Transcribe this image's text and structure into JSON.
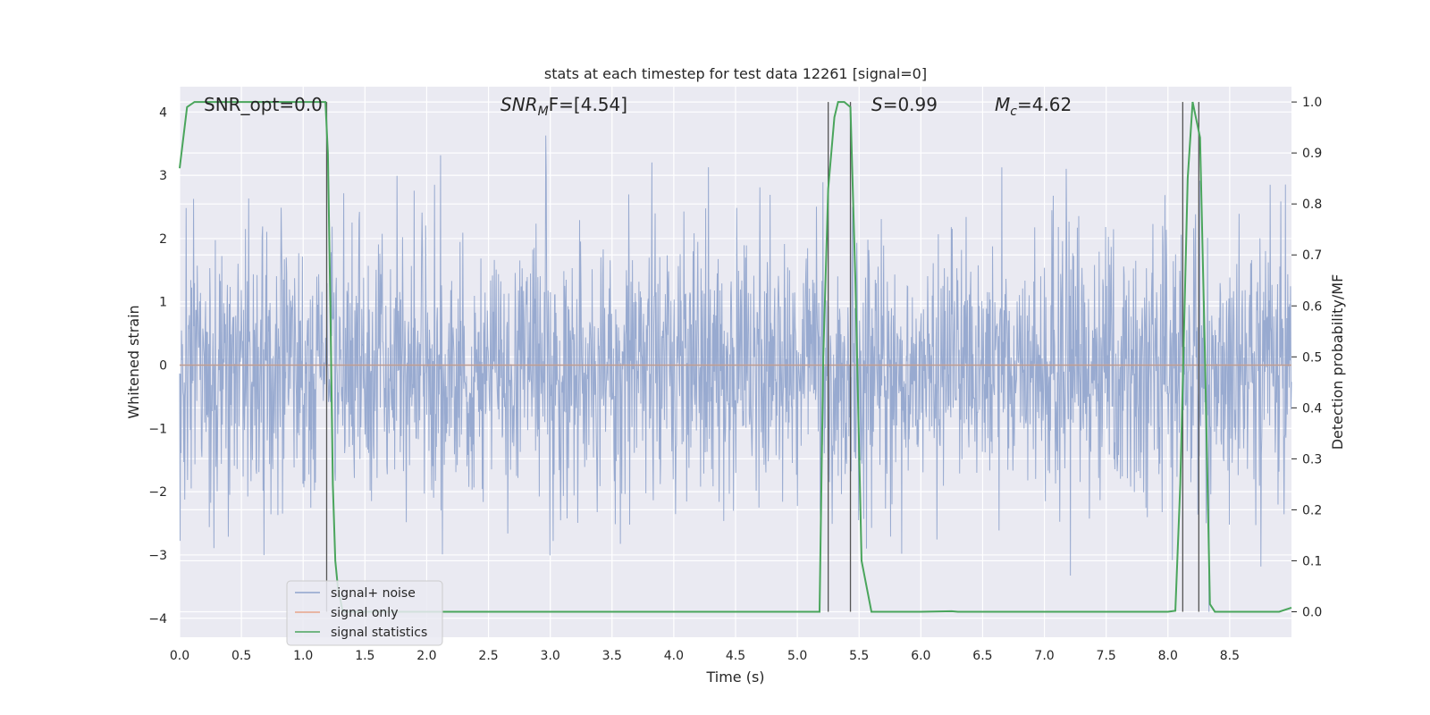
{
  "chart_data": {
    "type": "line",
    "title": "stats at each timestep for test data 12261 [signal=0]",
    "xlabel": "Time (s)",
    "ylabel": "Whitened strain",
    "ylabel_right": "Detection probability/MF",
    "xlim": [
      0,
      9.0
    ],
    "ylim": [
      -4.3,
      4.4
    ],
    "ylim_right": [
      -0.05,
      1.03
    ],
    "x_ticks": [
      "0.0",
      "0.5",
      "1.0",
      "1.5",
      "2.0",
      "2.5",
      "3.0",
      "3.5",
      "4.0",
      "4.5",
      "5.0",
      "5.5",
      "6.0",
      "6.5",
      "7.0",
      "7.5",
      "8.0",
      "8.5"
    ],
    "y_ticks": [
      "−4",
      "−3",
      "−2",
      "−1",
      "0",
      "1",
      "2",
      "3",
      "4"
    ],
    "y_ticks_right": [
      "0.0",
      "0.1",
      "0.2",
      "0.3",
      "0.4",
      "0.5",
      "0.6",
      "0.7",
      "0.8",
      "0.9",
      "1.0"
    ],
    "grid": true,
    "legend_position": "lower-left",
    "annotations": {
      "snr_opt": "SNR_opt=0.0",
      "snr_mf_main": "SNR",
      "snr_mf_sub": "M",
      "snr_mf_rest": "F=[4.54]",
      "s_var": "S",
      "s_rest": "=0.99",
      "mc_main": "M",
      "mc_sub": "c",
      "mc_rest": "=4.62"
    },
    "series": [
      {
        "name": "signal+ noise",
        "color": "#8fa3cc",
        "description_values": "whitened noise, approx. gaussian, peaks between -3.9 and 4.0"
      },
      {
        "name": "signal only",
        "color": "#e8a48a",
        "x": [
          0,
          9.0
        ],
        "y": [
          0,
          0
        ]
      },
      {
        "name": "signal statistics",
        "color": "#4aa55c",
        "axis": "right",
        "x": [
          0.0,
          0.06,
          0.12,
          0.5,
          1.0,
          1.18,
          1.2,
          1.22,
          1.24,
          1.26,
          1.28,
          1.32,
          1.5,
          2.0,
          3.0,
          4.0,
          5.0,
          5.18,
          5.21,
          5.25,
          5.3,
          5.33,
          5.38,
          5.43,
          5.47,
          5.52,
          5.6,
          6.0,
          6.25,
          6.3,
          7.0,
          8.0,
          8.06,
          8.1,
          8.16,
          8.2,
          8.26,
          8.3,
          8.34,
          8.38,
          8.5,
          8.7,
          8.9,
          9.0
        ],
        "y": [
          0.87,
          0.99,
          1.0,
          1.0,
          1.0,
          1.0,
          0.9,
          0.6,
          0.25,
          0.1,
          0.05,
          0.0,
          0.0,
          0.0,
          0.0,
          0.0,
          0.0,
          0.0,
          0.5,
          0.83,
          0.97,
          1.0,
          1.0,
          0.99,
          0.65,
          0.1,
          0.0,
          0.0,
          0.001,
          0.0,
          0.0,
          0.0,
          0.002,
          0.25,
          0.85,
          1.0,
          0.93,
          0.5,
          0.015,
          0.0,
          0.0,
          0.0,
          0.0,
          0.008
        ]
      }
    ],
    "vlines_x": [
      1.19,
      5.25,
      5.43,
      8.12,
      8.25
    ],
    "legend": [
      "signal+ noise",
      "signal only",
      "signal statistics"
    ]
  }
}
